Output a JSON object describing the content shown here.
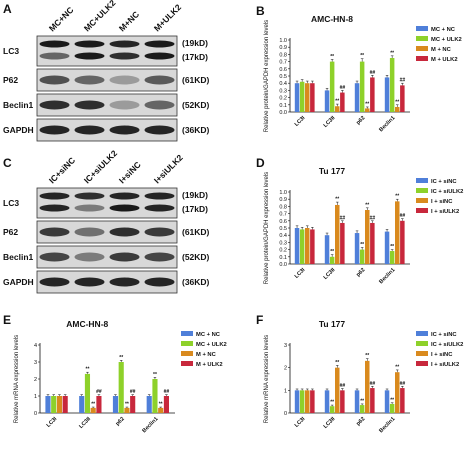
{
  "panels": {
    "A": "A",
    "B": "B",
    "C": "C",
    "D": "D",
    "E": "E",
    "F": "F"
  },
  "blot_A": {
    "columns": [
      "MC+NC",
      "MC+ULK2",
      "M+NC",
      "M+ULK2"
    ],
    "rows": [
      {
        "label": "LC3",
        "sizes": [
          "(19kD)",
          "(17kD)"
        ],
        "bands": 2,
        "intensity": [
          [
            0.95,
            0.95,
            0.9,
            0.95
          ],
          [
            0.6,
            0.95,
            0.85,
            0.95
          ]
        ]
      },
      {
        "label": "P62",
        "sizes": [
          "(61KD)"
        ],
        "bands": 1,
        "intensity": [
          [
            0.7,
            0.6,
            0.35,
            0.65
          ]
        ]
      },
      {
        "label": "Beclin1",
        "sizes": [
          "(52KD)"
        ],
        "bands": 1,
        "intensity": [
          [
            0.85,
            0.85,
            0.35,
            0.6
          ]
        ]
      },
      {
        "label": "GAPDH",
        "sizes": [
          "(36KD)"
        ],
        "bands": 1,
        "intensity": [
          [
            0.9,
            0.9,
            0.9,
            0.9
          ]
        ]
      }
    ]
  },
  "blot_C": {
    "columns": [
      "IC+siNC",
      "IC+siULK2",
      "I+siNC",
      "I+siULK2"
    ],
    "rows": [
      {
        "label": "LC3",
        "sizes": [
          "(19kD)",
          "(17kD)"
        ],
        "bands": 2,
        "intensity": [
          [
            0.9,
            0.85,
            0.9,
            0.9
          ],
          [
            0.9,
            0.5,
            0.95,
            0.9
          ]
        ]
      },
      {
        "label": "P62",
        "sizes": [
          "(61KD)"
        ],
        "bands": 1,
        "intensity": [
          [
            0.8,
            0.55,
            0.85,
            0.8
          ]
        ]
      },
      {
        "label": "Beclin1",
        "sizes": [
          "(52KD)"
        ],
        "bands": 1,
        "intensity": [
          [
            0.75,
            0.5,
            0.8,
            0.75
          ]
        ]
      },
      {
        "label": "GAPDH",
        "sizes": [
          "(36KD)"
        ],
        "bands": 1,
        "intensity": [
          [
            0.9,
            0.9,
            0.9,
            0.9
          ]
        ]
      }
    ]
  },
  "colors": {
    "blue": "#4f7fd9",
    "green": "#8ed12a",
    "orange": "#d98a1e",
    "red": "#c8283c"
  },
  "chart_data": [
    {
      "id": "B",
      "type": "bar",
      "title": "AMC-HN-8",
      "ylabel": "Relative protein/GAPDH expression levels",
      "ylim": [
        0,
        1.0
      ],
      "yticks": [
        "0.0",
        "0.1",
        "0.2",
        "0.3",
        "0.4",
        "0.5",
        "0.6",
        "0.7",
        "0.8",
        "0.9",
        "1.0"
      ],
      "categories": [
        "LC3I",
        "LC3II",
        "p62",
        "Beclin1"
      ],
      "series": [
        {
          "name": "MC + NC",
          "color": "#4f7fd9",
          "values": [
            0.4,
            0.3,
            0.4,
            0.48
          ],
          "errors": [
            0.03,
            0.03,
            0.03,
            0.03
          ],
          "sig": [
            "",
            "",
            "",
            ""
          ]
        },
        {
          "name": "MC + ULK2",
          "color": "#8ed12a",
          "values": [
            0.42,
            0.7,
            0.7,
            0.75
          ],
          "errors": [
            0.03,
            0.03,
            0.04,
            0.03
          ],
          "sig": [
            "",
            "**",
            "**",
            "**"
          ]
        },
        {
          "name": "M + NC",
          "color": "#d98a1e",
          "values": [
            0.4,
            0.08,
            0.05,
            0.07
          ],
          "errors": [
            0.03,
            0.03,
            0.02,
            0.03
          ],
          "sig": [
            "",
            "**",
            "**",
            "**"
          ]
        },
        {
          "name": "M + ULK2",
          "color": "#c8283c",
          "values": [
            0.4,
            0.27,
            0.48,
            0.37
          ],
          "errors": [
            0.03,
            0.03,
            0.03,
            0.03
          ],
          "sig": [
            "",
            "##",
            "##",
            "##"
          ]
        }
      ],
      "legend": "top-right"
    },
    {
      "id": "D",
      "type": "bar",
      "title": "Tu 177",
      "ylabel": "Relative protein/GAPDH expression levels",
      "ylim": [
        0,
        1.0
      ],
      "yticks": [
        "0.0",
        "0.1",
        "0.2",
        "0.3",
        "0.4",
        "0.5",
        "0.6",
        "0.7",
        "0.8",
        "0.9",
        "1.0"
      ],
      "categories": [
        "LC3I",
        "LC3II",
        "p62",
        "Beclin1"
      ],
      "series": [
        {
          "name": "IC + siNC",
          "color": "#4f7fd9",
          "values": [
            0.5,
            0.4,
            0.43,
            0.45
          ],
          "errors": [
            0.03,
            0.03,
            0.03,
            0.03
          ],
          "sig": [
            "",
            "",
            "",
            ""
          ]
        },
        {
          "name": "IC + siULK2",
          "color": "#8ed12a",
          "values": [
            0.48,
            0.1,
            0.2,
            0.18
          ],
          "errors": [
            0.03,
            0.03,
            0.03,
            0.02
          ],
          "sig": [
            "",
            "**",
            "**",
            "**"
          ]
        },
        {
          "name": "I + siNC",
          "color": "#d98a1e",
          "values": [
            0.5,
            0.82,
            0.75,
            0.87
          ],
          "errors": [
            0.03,
            0.04,
            0.03,
            0.03
          ],
          "sig": [
            "",
            "**",
            "**",
            "**"
          ]
        },
        {
          "name": "I + siULK2",
          "color": "#c8283c",
          "values": [
            0.48,
            0.57,
            0.57,
            0.6
          ],
          "errors": [
            0.03,
            0.03,
            0.03,
            0.03
          ],
          "sig": [
            "",
            "##",
            "##",
            "##"
          ]
        }
      ],
      "legend": "top-right"
    },
    {
      "id": "E",
      "type": "bar",
      "title": "AMC-HN-8",
      "ylabel": "Relative mRNA expression levels",
      "ylim": [
        0,
        4
      ],
      "yticks": [
        "0",
        "1",
        "2",
        "3",
        "4"
      ],
      "categories": [
        "LC3I",
        "LC3II",
        "p62",
        "Beclin1"
      ],
      "series": [
        {
          "name": "MC + NC",
          "color": "#4f7fd9",
          "values": [
            1.0,
            1.0,
            1.0,
            1.0
          ],
          "errors": [
            0.08,
            0.08,
            0.08,
            0.08
          ],
          "sig": [
            "",
            "",
            "",
            ""
          ]
        },
        {
          "name": "MC + ULK2",
          "color": "#8ed12a",
          "values": [
            1.0,
            2.3,
            3.0,
            2.0
          ],
          "errors": [
            0.08,
            0.1,
            0.1,
            0.1
          ],
          "sig": [
            "",
            "**",
            "**",
            "**"
          ]
        },
        {
          "name": "M + NC",
          "color": "#d98a1e",
          "values": [
            1.0,
            0.3,
            0.3,
            0.3
          ],
          "errors": [
            0.08,
            0.05,
            0.05,
            0.05
          ],
          "sig": [
            "",
            "**",
            "**",
            "**"
          ]
        },
        {
          "name": "M + ULK2",
          "color": "#c8283c",
          "values": [
            1.0,
            1.0,
            1.0,
            1.0
          ],
          "errors": [
            0.08,
            0.08,
            0.08,
            0.08
          ],
          "sig": [
            "",
            "##",
            "##",
            "##"
          ]
        }
      ],
      "legend": "top-right"
    },
    {
      "id": "F",
      "type": "bar",
      "title": "Tu 177",
      "ylabel": "Relative mRNA expression levels",
      "ylim": [
        0,
        3
      ],
      "yticks": [
        "0",
        "1",
        "2",
        "3"
      ],
      "categories": [
        "LC3I",
        "LC3II",
        "p62",
        "Beclin1"
      ],
      "series": [
        {
          "name": "IC + siNC",
          "color": "#4f7fd9",
          "values": [
            1.0,
            1.0,
            1.0,
            1.0
          ],
          "errors": [
            0.06,
            0.06,
            0.06,
            0.06
          ],
          "sig": [
            "",
            "",
            "",
            ""
          ]
        },
        {
          "name": "IC + siULK2",
          "color": "#8ed12a",
          "values": [
            1.0,
            0.3,
            0.35,
            0.4
          ],
          "errors": [
            0.06,
            0.05,
            0.05,
            0.05
          ],
          "sig": [
            "",
            "**",
            "**",
            "**"
          ]
        },
        {
          "name": "I + siNC",
          "color": "#d98a1e",
          "values": [
            1.0,
            2.0,
            2.3,
            1.8
          ],
          "errors": [
            0.06,
            0.1,
            0.1,
            0.1
          ],
          "sig": [
            "",
            "**",
            "**",
            "**"
          ]
        },
        {
          "name": "I + siULK2",
          "color": "#c8283c",
          "values": [
            1.0,
            1.0,
            1.1,
            1.1
          ],
          "errors": [
            0.06,
            0.08,
            0.08,
            0.08
          ],
          "sig": [
            "",
            "##",
            "##",
            "##"
          ]
        }
      ],
      "legend": "top-right"
    }
  ]
}
